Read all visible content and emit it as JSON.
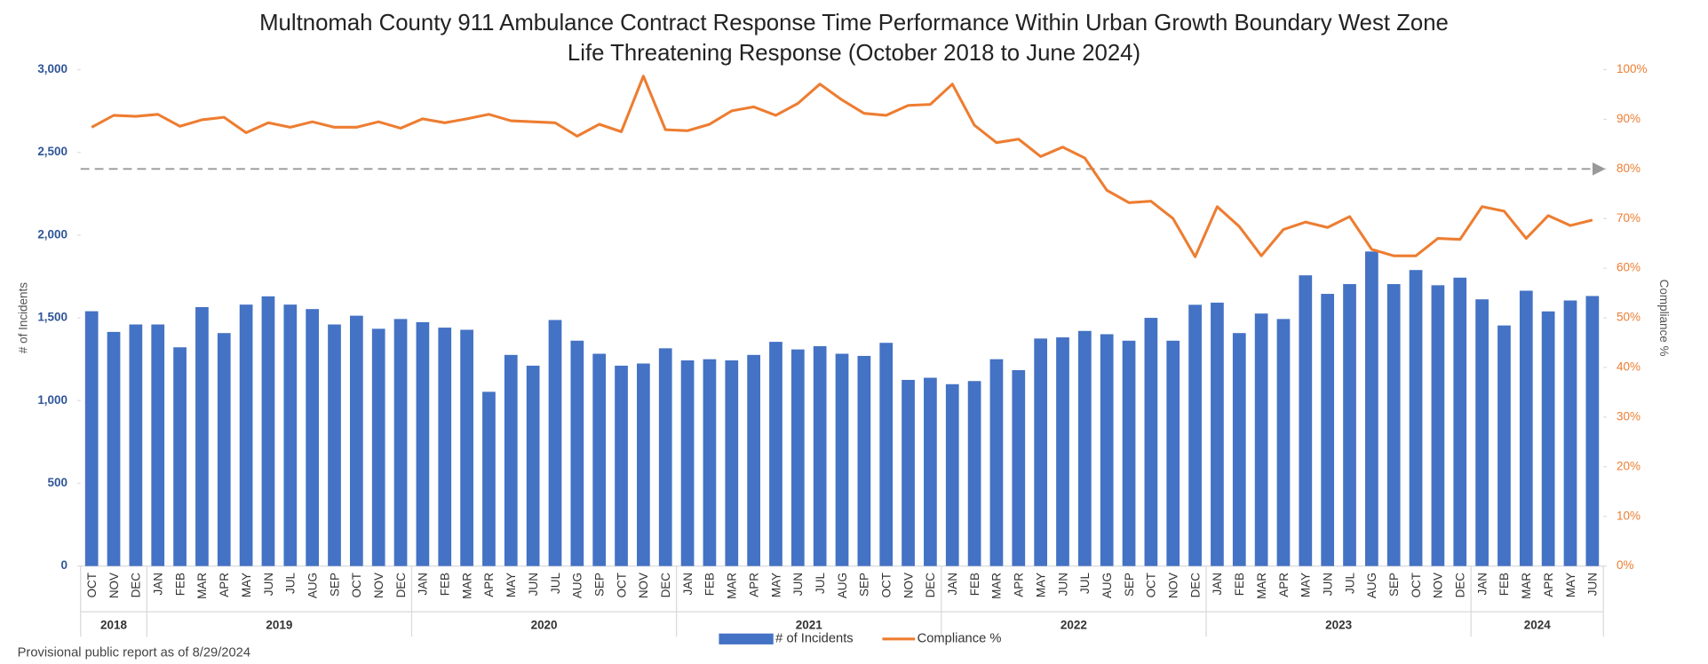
{
  "chart_data": {
    "type": "bar_line",
    "title": "Multnomah County 911 Ambulance Contract Response Time Performance Within Urban Growth Boundary West Zone",
    "subtitle": "Life Threatening Response (October 2018 to June 2024)",
    "y_label": "# of Incidents",
    "y2_label": "Compliance %",
    "footnote": "Provisional public report as of 8/29/2024",
    "category_groups": [
      {
        "name": "2018",
        "categories": [
          "OCT",
          "NOV",
          "DEC"
        ]
      },
      {
        "name": "2019",
        "categories": [
          "JAN",
          "FEB",
          "MAR",
          "APR",
          "MAY",
          "JUN",
          "JUL",
          "AUG",
          "SEP",
          "OCT",
          "NOV",
          "DEC"
        ]
      },
      {
        "name": "2020",
        "categories": [
          "JAN",
          "FEB",
          "MAR",
          "APR",
          "MAY",
          "JUN",
          "JUL",
          "AUG",
          "SEP",
          "OCT",
          "NOV",
          "DEC"
        ]
      },
      {
        "name": "2021",
        "categories": [
          "JAN",
          "FEB",
          "MAR",
          "APR",
          "MAY",
          "JUN",
          "JUL",
          "AUG",
          "SEP",
          "OCT",
          "NOV",
          "DEC"
        ]
      },
      {
        "name": "2022",
        "categories": [
          "JAN",
          "FEB",
          "MAR",
          "APR",
          "MAY",
          "JUN",
          "JUL",
          "AUG",
          "SEP",
          "OCT",
          "NOV",
          "DEC"
        ]
      },
      {
        "name": "2023",
        "categories": [
          "JAN",
          "FEB",
          "MAR",
          "APR",
          "MAY",
          "JUN",
          "JUL",
          "AUG",
          "SEP",
          "OCT",
          "NOV",
          "DEC"
        ]
      },
      {
        "name": "2024",
        "categories": [
          "JAN",
          "FEB",
          "MAR",
          "APR",
          "MAY",
          "JUN"
        ]
      }
    ],
    "series": [
      {
        "name": "# of Incidents",
        "type": "bar",
        "color": "#4472c4",
        "values": [
          1540,
          1415,
          1460,
          1460,
          1322,
          1565,
          1408,
          1580,
          1630,
          1580,
          1553,
          1460,
          1513,
          1434,
          1493,
          1474,
          1441,
          1428,
          1053,
          1276,
          1211,
          1487,
          1362,
          1283,
          1211,
          1224,
          1316,
          1243,
          1250,
          1243,
          1276,
          1355,
          1309,
          1329,
          1283,
          1270,
          1349,
          1125,
          1138,
          1099,
          1118,
          1250,
          1184,
          1375,
          1382,
          1421,
          1401,
          1362,
          1500,
          1362,
          1579,
          1592,
          1408,
          1526,
          1493,
          1757,
          1645,
          1704,
          1901,
          1704,
          1789,
          1697,
          1743,
          1612,
          1454,
          1664,
          1539,
          1605,
          1632
        ]
      },
      {
        "name": "Compliance %",
        "type": "line",
        "axis": "y2",
        "color": "#ed7d31",
        "values": [
          88.4,
          90.8,
          90.6,
          91,
          88.6,
          89.9,
          90.4,
          87.3,
          89.3,
          88.4,
          89.5,
          88.4,
          88.4,
          89.5,
          88.2,
          90.1,
          89.3,
          90.1,
          91,
          89.7,
          89.5,
          89.3,
          86.6,
          89,
          87.5,
          98.7,
          87.9,
          87.7,
          89,
          91.7,
          92.5,
          90.8,
          93.2,
          97.1,
          93.9,
          91.2,
          90.8,
          92.8,
          93,
          97.1,
          88.8,
          85.3,
          86,
          82.5,
          84.4,
          82.2,
          75.7,
          73.2,
          73.5,
          70,
          62.3,
          72.4,
          68.4,
          62.5,
          67.8,
          69.3,
          68.2,
          70.4,
          63.8,
          62.5,
          62.5,
          66,
          65.8,
          72.4,
          71.5,
          66,
          70.6,
          68.6,
          69.7
        ]
      }
    ],
    "reference_line": {
      "value": 80,
      "axis": "y2",
      "color": "#999999"
    },
    "ylim": [
      0,
      3000
    ],
    "yticks": [
      0,
      500,
      {
        "value": 1000,
        "label": "1,000"
      },
      {
        "value": 1500,
        "label": "1,500"
      },
      {
        "value": 2000,
        "label": "2,000"
      },
      {
        "value": 2500,
        "label": "2,500"
      },
      {
        "value": 3000,
        "label": "3,000"
      }
    ],
    "y2lim": [
      0,
      100
    ],
    "y2ticks": [
      {
        "value": 0,
        "label": "0%"
      },
      {
        "value": 10,
        "label": "10%"
      },
      {
        "value": 20,
        "label": "20%"
      },
      {
        "value": 30,
        "label": "30%"
      },
      {
        "value": 40,
        "label": "40%"
      },
      {
        "value": 50,
        "label": "50%"
      },
      {
        "value": 60,
        "label": "60%"
      },
      {
        "value": 70,
        "label": "70%"
      },
      {
        "value": 80,
        "label": "80%"
      },
      {
        "value": 90,
        "label": "90%"
      },
      {
        "value": 100,
        "label": "100%"
      }
    ],
    "legend": "bottom",
    "grid": false
  }
}
